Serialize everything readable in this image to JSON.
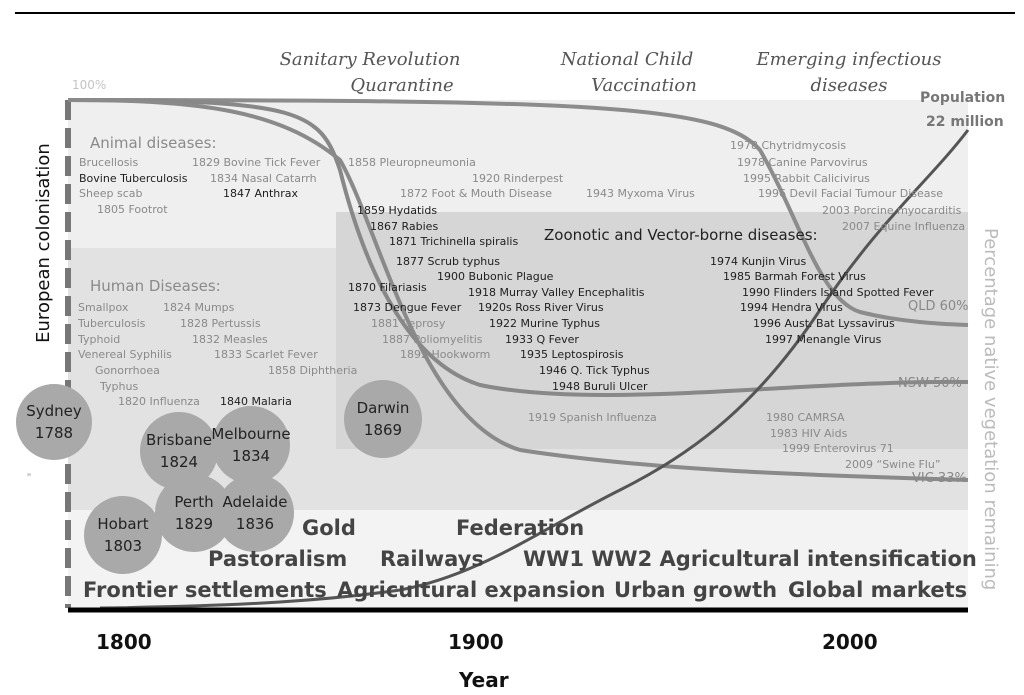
{
  "top_headers": [
    {
      "id": "sanitary",
      "line1": "Sanitary Revolution",
      "line2": "Quarantine"
    },
    {
      "id": "vaccination",
      "line1": "National Child",
      "line2": "Vaccination"
    },
    {
      "id": "emerging",
      "line1": "Emerging infectious",
      "line2": "diseases"
    }
  ],
  "labels": {
    "pct100": "100%",
    "population": "Population",
    "population_value": "22 million",
    "european_colonisation": "European colonisation",
    "right_axis": "Percentage native vegetation remaining",
    "animal_heading": "Animal diseases:",
    "human_heading": "Human Diseases:",
    "zoonotic_heading": "Zoonotic and Vector-borne diseases:",
    "stray_mark": "”",
    "x_axis_title": "Year"
  },
  "animal_diseases": [
    "Brucellosis",
    "Bovine Tuberculosis",
    "Sheep scab",
    "1805 Footrot",
    "1829 Bovine Tick Fever",
    "1834 Nasal Catarrh",
    "1847 Anthrax",
    "1858  Pleuropneumonia",
    "1920 Rinderpest",
    "1872 Foot & Mouth Disease",
    "1943 Myxoma Virus",
    "1978 Chytridmycosis",
    "1978 Canine Parvovirus",
    "1995 Rabbit Calicivirus",
    "1996 Devil Facial Tumour Disease",
    "2003 Porcine myocarditis",
    "2007 Equine Influenza"
  ],
  "mid_diseases": [
    "1859 Hydatids",
    "1867 Rabies",
    "1871 Trichinella spiralis"
  ],
  "human_diseases": [
    "Smallpox",
    "Tuberculosis",
    "Typhoid",
    "Venereal Syphilis",
    "Gonorrhoea",
    "Typhus",
    "1820 Influenza",
    "1840 Malaria",
    "1824 Mumps",
    "1828 Pertussis",
    "1832 Measles",
    "1833 Scarlet Fever",
    "1858 Diphtheria"
  ],
  "zoonotic_diseases": [
    "1877 Scrub typhus",
    "1900 Bubonic Plague",
    "1870 Filariasis",
    "1918 Murray Valley Encephalitis",
    "1873 Dengue Fever",
    "1920s Ross River Virus",
    "1881 Leprosy",
    "1922 Murine Typhus",
    "1887 Poliomyelitis",
    "1933 Q Fever",
    "1892 Hookworm",
    "1935 Leptospirosis",
    "1946 Q. Tick Typhus",
    "1948 Buruli Ulcer",
    "1919 Spanish Influenza",
    "1974 Kunjin Virus",
    "1985 Barmah Forest Virus",
    "1990 Flinders Island Spotted Fever",
    "1994 Hendra Virus",
    "1996  Aust. Bat  Lyssavirus",
    "1997 Menangle Virus",
    "1980 CAMRSA",
    "1983 HIV Aids",
    "1999 Enterovirus 71",
    "2009 “Swine Flu”"
  ],
  "vegetation_labels": [
    {
      "id": "qld",
      "label": "QLD 60%"
    },
    {
      "id": "nsw",
      "label": "NSW 50%"
    },
    {
      "id": "vic",
      "label": "VIC 33%"
    }
  ],
  "cities": [
    {
      "name": "Sydney",
      "year": "1788"
    },
    {
      "name": "Darwin",
      "year": "1869"
    },
    {
      "name": "Brisbane",
      "year": "1824"
    },
    {
      "name": "Melbourne",
      "year": "1834"
    },
    {
      "name": "Perth",
      "year": "1829"
    },
    {
      "name": "Adelaide",
      "year": "1836"
    },
    {
      "name": "Hobart",
      "year": "1803"
    }
  ],
  "eras": [
    "Gold",
    "Federation",
    "Pastoralism",
    "Railways",
    "WW1 WW2 Agricultural intensification",
    "Frontier settlements",
    "Agricultural expansion",
    "Urban growth",
    "Global markets"
  ],
  "x_ticks": [
    "1800",
    "1900",
    "2000"
  ],
  "colors": {
    "band_light": "#efefef",
    "band_mid": "#e3e3e3",
    "band_zoo": "#d9d9d9",
    "curve": "#555555",
    "text_grey": "#8a8a8a"
  }
}
